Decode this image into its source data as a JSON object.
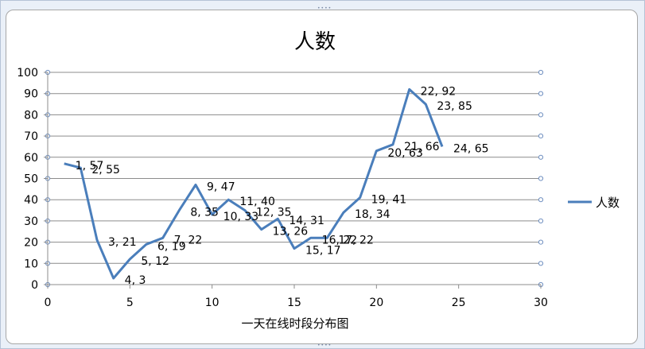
{
  "chart_data": {
    "type": "line",
    "title": "人数",
    "xlabel": "一天在线时段分布图",
    "ylabel": "",
    "xlim": [
      0,
      30
    ],
    "ylim": [
      0,
      100
    ],
    "x_ticks": [
      0,
      5,
      10,
      15,
      20,
      25,
      30
    ],
    "y_ticks": [
      0,
      10,
      20,
      30,
      40,
      50,
      60,
      70,
      80,
      90,
      100
    ],
    "grid": "horizontal",
    "legend": "right",
    "series": [
      {
        "name": "人数",
        "color": "#4a7ebb",
        "points": [
          [
            1,
            57
          ],
          [
            2,
            55
          ],
          [
            3,
            21
          ],
          [
            4,
            3
          ],
          [
            5,
            12
          ],
          [
            6,
            19
          ],
          [
            7,
            22
          ],
          [
            8,
            35
          ],
          [
            9,
            47
          ],
          [
            10,
            33
          ],
          [
            11,
            40
          ],
          [
            12,
            35
          ],
          [
            13,
            26
          ],
          [
            14,
            31
          ],
          [
            15,
            17
          ],
          [
            16,
            22
          ],
          [
            17,
            22
          ],
          [
            18,
            34
          ],
          [
            19,
            41
          ],
          [
            20,
            63
          ],
          [
            21,
            66
          ],
          [
            22,
            92
          ],
          [
            23,
            85
          ],
          [
            24,
            65
          ]
        ],
        "labels": [
          "1, 57",
          "2, 55",
          "3, 21",
          "4, 3",
          "5, 12",
          "6, 19",
          "7, 22",
          "8, 35",
          "9, 47",
          "10, 33",
          "11, 40",
          "12, 35",
          "13, 26",
          "14, 31",
          "15, 17",
          "16, 22",
          "17, 22",
          "18, 34",
          "19, 41",
          "20, 63",
          "21, 66",
          "22, 92",
          "23, 85",
          "24, 65"
        ]
      }
    ]
  }
}
